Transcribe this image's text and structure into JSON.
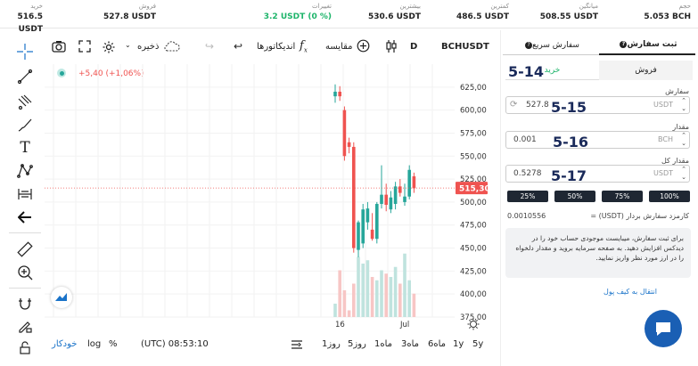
{
  "stats": [
    {
      "key": "حجم",
      "value": "5.053 BCH"
    },
    {
      "key": "میانگین",
      "value": "508.55 USDT"
    },
    {
      "key": "کمترین",
      "value": "486.5 USDT"
    },
    {
      "key": "بیشترین",
      "value": "530.6 USDT"
    },
    {
      "key": "تغییرات",
      "value": "3.2 USDT (0 %)"
    },
    {
      "key": "فروش",
      "value": "527.8 USDT"
    },
    {
      "key": "خرید",
      "value": "516.5 USDT"
    }
  ],
  "toolbar": {
    "symbol": "BCHUSDT",
    "interval": "D",
    "compare": "مقایسه",
    "indicators": "اندیکاتورها",
    "save": "ذخیره"
  },
  "legend": {
    "change": "+5,40 (+1,06%)"
  },
  "chart_data": {
    "type": "candlestick",
    "ylim": [
      375,
      650
    ],
    "y_ticks": [
      "625,00",
      "600,00",
      "575,00",
      "550,00",
      "525,00",
      "500,00",
      "475,00",
      "450,00",
      "425,00",
      "400,00",
      "375,00"
    ],
    "x_ticks": [
      "16",
      "Jul"
    ],
    "last_price": "515,30",
    "candles": [
      {
        "o": 615,
        "h": 628,
        "l": 608,
        "c": 620
      },
      {
        "o": 620,
        "h": 626,
        "l": 610,
        "c": 615
      },
      {
        "o": 600,
        "h": 604,
        "l": 545,
        "c": 550
      },
      {
        "o": 565,
        "h": 570,
        "l": 553,
        "c": 560
      },
      {
        "o": 560,
        "h": 565,
        "l": 445,
        "c": 450
      },
      {
        "o": 448,
        "h": 480,
        "l": 440,
        "c": 478
      },
      {
        "o": 455,
        "h": 498,
        "l": 450,
        "c": 492
      },
      {
        "o": 478,
        "h": 500,
        "l": 470,
        "c": 493
      },
      {
        "o": 470,
        "h": 488,
        "l": 458,
        "c": 460
      },
      {
        "o": 460,
        "h": 500,
        "l": 455,
        "c": 498
      },
      {
        "o": 498,
        "h": 540,
        "l": 493,
        "c": 508
      },
      {
        "o": 508,
        "h": 520,
        "l": 490,
        "c": 497
      },
      {
        "o": 492,
        "h": 512,
        "l": 488,
        "c": 505
      },
      {
        "o": 498,
        "h": 522,
        "l": 492,
        "c": 517
      },
      {
        "o": 517,
        "h": 525,
        "l": 506,
        "c": 510
      },
      {
        "o": 500,
        "h": 520,
        "l": 496,
        "c": 506
      },
      {
        "o": 506,
        "h": 540,
        "l": 503,
        "c": 535
      },
      {
        "o": 528,
        "h": 532,
        "l": 510,
        "c": 515
      }
    ],
    "volumes": [
      0.2,
      0.7,
      0.4,
      0.1,
      0.5,
      0.9,
      0.8,
      0.85,
      0.6,
      0.55,
      0.7,
      0.65,
      0.6,
      0.75,
      0.5,
      0.95,
      0.55,
      0.35
    ]
  },
  "bottombar": {
    "ranges": [
      "5y",
      "1y",
      "6ماه",
      "3ماه",
      "1ماه",
      "5روز",
      "1روز"
    ],
    "time": "(UTC) 08:53:10",
    "pct": "%",
    "log": "log",
    "auto": "خودکار"
  },
  "order": {
    "tab_place": "ثبت سفارش",
    "tab_quick": "سفارش سریع",
    "sell": "فروش",
    "buy": "خرید",
    "order_label": "سفارش",
    "order_value": "527.8",
    "order_unit": "USDT",
    "amount_label": "مقدار",
    "amount_value": "0.001",
    "amount_unit": "BCH",
    "total_label": "مقدار کل",
    "total_value": "0.5278",
    "total_unit": "USDT",
    "pcts": [
      "100%",
      "75%",
      "50%",
      "25%"
    ],
    "fee_label": "کارمزد سفارش بردار (USDT) =",
    "fee_value": "0.0010556",
    "note": "برای ثبت سفارش، میبایست موجودی حساب خود را در دیدکس افزایش دهید. به صفحه سرمایه بروید و مقدار دلخواه را در ارز مورد نظر واریز نمایید.",
    "transfer_link": "انتقال به کیف پول"
  },
  "overlays": [
    "5-14",
    "5-15",
    "5-16",
    "5-17"
  ],
  "colors": {
    "up": "#26a69a",
    "down": "#ef5350",
    "accent": "#1a73c9",
    "green": "#1db46a"
  }
}
